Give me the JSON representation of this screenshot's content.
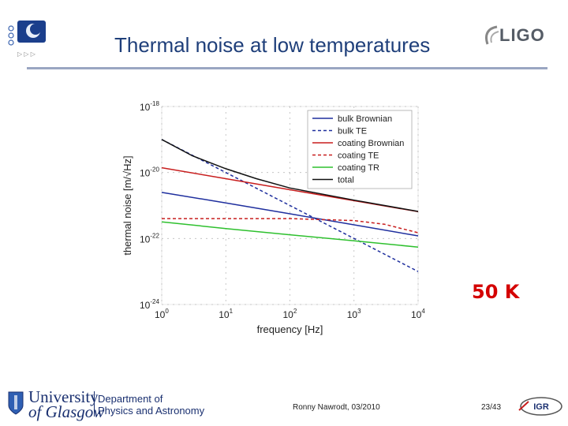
{
  "header": {
    "title": "Thermal noise at low temperatures",
    "logo_text": "LIGO",
    "nav_arrows": "▷ ▷ ▷"
  },
  "annotation": {
    "temperature": "50 K"
  },
  "footer": {
    "author_date": "Ronny Nawrodt, 03/2010",
    "page": "23/43",
    "university_line1": "University",
    "university_line2": "of Glasgow",
    "department_line1": "Department of",
    "department_line2": "Physics and Astronomy",
    "igr_logo_text": "IGR"
  },
  "chart_data": {
    "type": "line",
    "xlabel": "frequency [Hz]",
    "ylabel": "thermal noise [m/√Hz]",
    "xscale": "log",
    "yscale": "log",
    "xlim": [
      1,
      10000
    ],
    "ylim": [
      1e-24,
      1e-18
    ],
    "x_ticks": [
      {
        "base": "10",
        "exp": "0"
      },
      {
        "base": "10",
        "exp": "1"
      },
      {
        "base": "10",
        "exp": "2"
      },
      {
        "base": "10",
        "exp": "3"
      },
      {
        "base": "10",
        "exp": "4"
      }
    ],
    "y_ticks": [
      {
        "base": "10",
        "exp": "-18"
      },
      {
        "base": "10",
        "exp": "-20"
      },
      {
        "base": "10",
        "exp": "-22"
      },
      {
        "base": "10",
        "exp": "-24"
      }
    ],
    "legend_position": "top-right",
    "series": [
      {
        "name": "bulk Brownian",
        "color": "#1f2f9e",
        "dash": "solid",
        "x": [
          1,
          10,
          100,
          1000,
          10000
        ],
        "y": [
          2.5e-21,
          1.2e-21,
          5.6e-22,
          2.6e-22,
          1.2e-22
        ]
      },
      {
        "name": "bulk TE",
        "color": "#1f2f9e",
        "dash": "dashed",
        "x": [
          1,
          10,
          100,
          1000,
          10000
        ],
        "y": [
          1e-19,
          1e-20,
          1e-21,
          1e-22,
          1e-23
        ]
      },
      {
        "name": "coating Brownian",
        "color": "#c81e1e",
        "dash": "solid",
        "x": [
          1,
          10,
          100,
          1000,
          10000
        ],
        "y": [
          1.4e-20,
          6.5e-21,
          3e-21,
          1.4e-21,
          6.5e-22
        ]
      },
      {
        "name": "coating TE",
        "color": "#c81e1e",
        "dash": "dashed",
        "x": [
          1,
          10,
          100,
          1000,
          3000,
          10000
        ],
        "y": [
          4e-22,
          4e-22,
          4e-22,
          3.5e-22,
          2.7e-22,
          1.5e-22
        ]
      },
      {
        "name": "coating TR",
        "color": "#2ec02e",
        "dash": "solid",
        "x": [
          1,
          10,
          100,
          1000,
          10000
        ],
        "y": [
          3.2e-22,
          2e-22,
          1.3e-22,
          8.5e-23,
          5.5e-23
        ]
      },
      {
        "name": "total",
        "color": "#111111",
        "dash": "solid",
        "x": [
          1,
          3,
          10,
          30,
          100,
          1000,
          10000
        ],
        "y": [
          1e-19,
          3.2e-20,
          1.3e-20,
          6.5e-21,
          3.4e-21,
          1.45e-21,
          6.6e-22
        ]
      }
    ]
  }
}
